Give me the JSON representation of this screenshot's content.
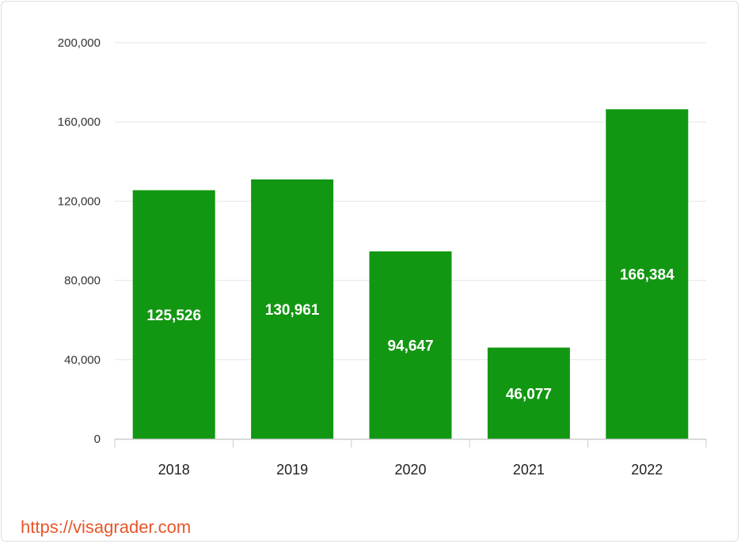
{
  "chart_data": {
    "type": "bar",
    "categories": [
      "2018",
      "2019",
      "2020",
      "2021",
      "2022"
    ],
    "values": [
      125526,
      130961,
      94647,
      46077,
      166384
    ],
    "data_labels": [
      "125,526",
      "130,961",
      "94,647",
      "46,077",
      "166,384"
    ],
    "y_ticks": [
      0,
      40000,
      80000,
      120000,
      160000,
      200000
    ],
    "y_tick_labels": [
      "0",
      "40,000",
      "80,000",
      "120,000",
      "160,000",
      "200,000"
    ],
    "ylim": [
      0,
      200000
    ],
    "title": "",
    "xlabel": "",
    "ylabel": "",
    "grid": true,
    "legend": "none",
    "bar_color": "#129712",
    "data_label_color": "#ffffff"
  },
  "footer": {
    "source_url": "https://visagrader.com",
    "source_color": "#e8562a"
  }
}
